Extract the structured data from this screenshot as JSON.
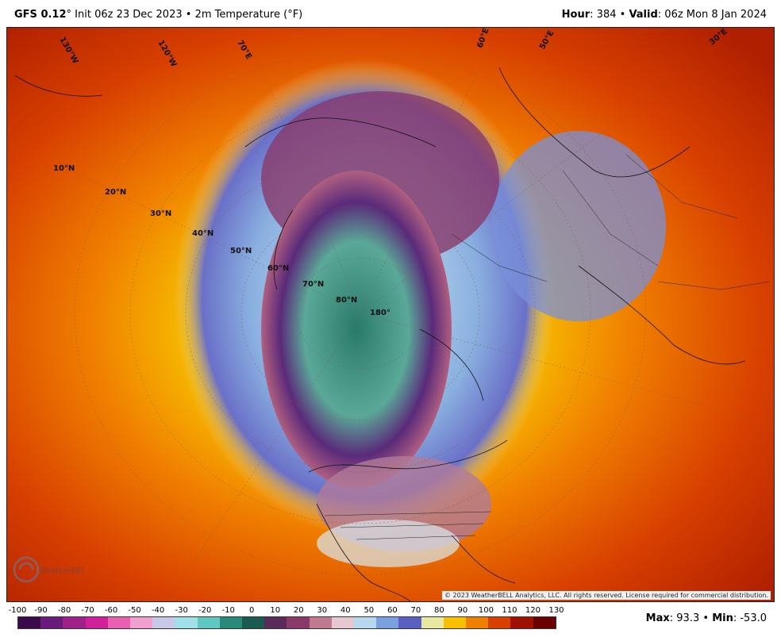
{
  "header": {
    "model": "GFS 0.12",
    "degree_mark": "°",
    "init_text": "Init 06z 23 Dec 2023",
    "bullet": "•",
    "field": "2m Temperature (°F)",
    "hour_label": "Hour",
    "hour_value": ": 384",
    "valid_label": "Valid",
    "valid_value": ": 06z Mon 8 Jan 2024"
  },
  "map": {
    "lat_labels": [
      "10°N",
      "20°N",
      "30°N",
      "40°N",
      "50°N",
      "60°N",
      "70°N",
      "80°N"
    ],
    "pole_label": "180°",
    "lon_labels": [
      "70°E",
      "60°E",
      "50°E",
      "30°E",
      "120°W",
      "130°W"
    ],
    "copyright": "© 2023 WeatherBELL Analytics, LLC. All rights reserved. License required for commercial distribution.",
    "logo_text": "WeatherBELL"
  },
  "colorbar": {
    "ticks": [
      "-100",
      "-90",
      "-80",
      "-70",
      "-60",
      "-50",
      "-40",
      "-30",
      "-20",
      "-10",
      "0",
      "10",
      "20",
      "30",
      "40",
      "50",
      "60",
      "70",
      "80",
      "90",
      "100",
      "110",
      "120",
      "130"
    ],
    "colors": [
      "#3a0a4a",
      "#6a1a7a",
      "#a0208a",
      "#d0209a",
      "#e860b0",
      "#f0a0d0",
      "#c8c8e8",
      "#a0e0e8",
      "#60c8c0",
      "#2a8a7a",
      "#1a5a50",
      "#5a2a5a",
      "#8a3a6a",
      "#c07a90",
      "#e8c8d0",
      "#b8d8f0",
      "#7aa0e0",
      "#5a60c0",
      "#e8e8a0",
      "#f8c000",
      "#f08000",
      "#d84000",
      "#a01000",
      "#6a0000"
    ]
  },
  "stats": {
    "max_label": "Max",
    "max_value": ": 93.3",
    "bullet": "•",
    "min_label": "Min",
    "min_value": ": -53.0"
  }
}
